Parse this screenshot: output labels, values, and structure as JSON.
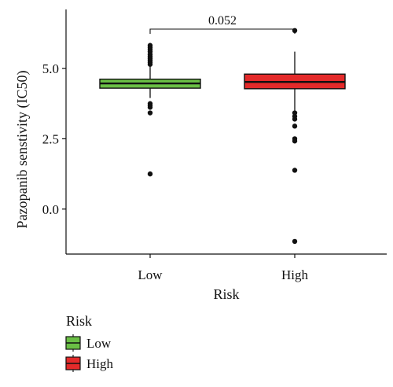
{
  "chart_data": {
    "type": "boxplot",
    "xlabel": "Risk",
    "ylabel": "Pazopanib senstivity (IC50)",
    "categories": [
      "Low",
      "High"
    ],
    "ylim": [
      -1.6,
      7.1
    ],
    "yticks": [
      0.0,
      2.5,
      5.0
    ],
    "ytick_labels": [
      "0.0",
      "2.5",
      "5.0"
    ],
    "grid": false,
    "series": [
      {
        "name": "Low",
        "color": "#6abf45",
        "min": 3.95,
        "q1": 4.3,
        "median": 4.47,
        "q3": 4.62,
        "max": 5.1,
        "outliers": [
          5.82,
          5.75,
          5.68,
          5.6,
          5.5,
          5.42,
          5.35,
          5.28,
          5.22,
          5.15,
          3.75,
          3.68,
          3.62,
          3.42,
          1.25
        ]
      },
      {
        "name": "High",
        "color": "#e42a2a",
        "min": 3.5,
        "q1": 4.28,
        "median": 4.52,
        "q3": 4.8,
        "max": 5.6,
        "outliers": [
          6.35,
          3.42,
          3.3,
          3.2,
          2.95,
          2.5,
          2.42,
          1.38,
          -1.15
        ]
      }
    ],
    "annotation": {
      "text": "0.052",
      "between": [
        "Low",
        "High"
      ]
    },
    "legend": {
      "title": "Risk",
      "position": "bottom-left",
      "entries": [
        "Low",
        "High"
      ]
    }
  }
}
